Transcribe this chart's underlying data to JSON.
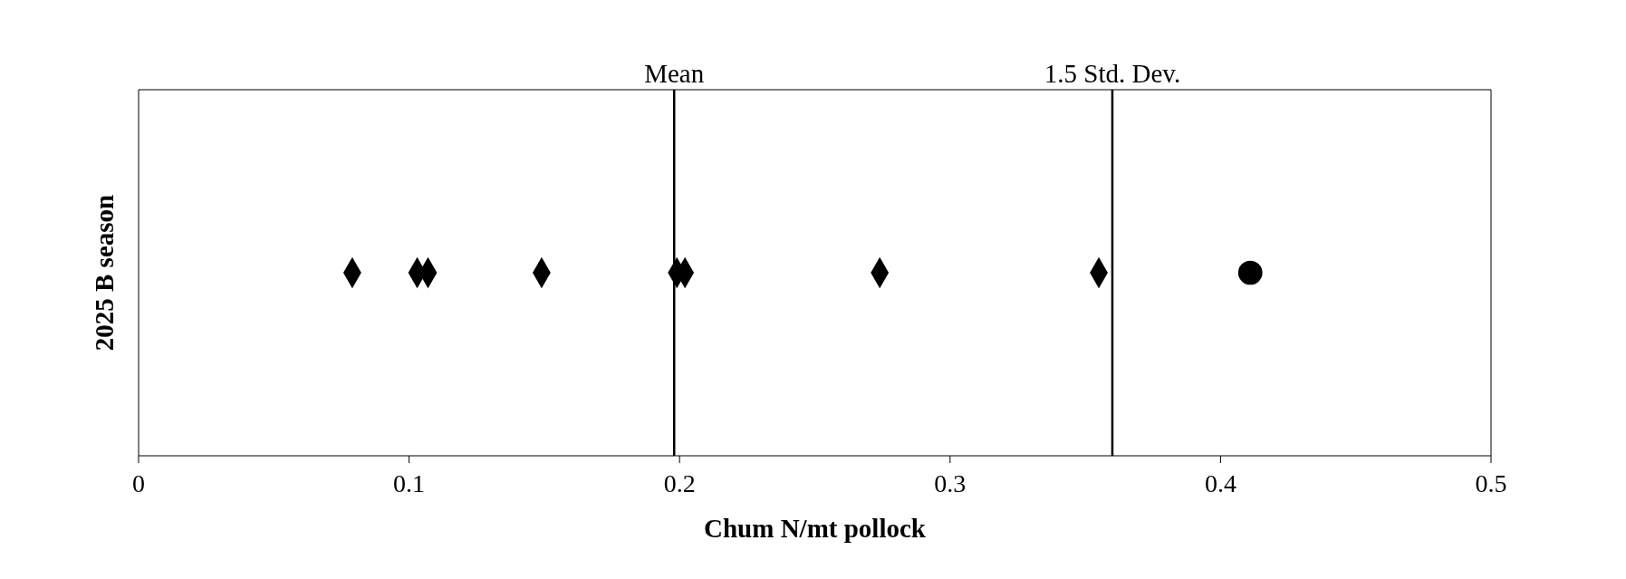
{
  "chart_data": {
    "type": "scatter",
    "orientation": "horizontal",
    "xlabel": "Chum  N/mt pollock",
    "categories": [
      "2025 B season"
    ],
    "xlim": [
      0,
      0.5
    ],
    "xticks": [
      0,
      0.1,
      0.2,
      0.3,
      0.4,
      0.5
    ],
    "grid": false,
    "legend": false,
    "series": [
      {
        "color": "#000000",
        "marker": "diamond",
        "values": [
          0.079
        ]
      },
      {
        "color": "#000000",
        "marker": "diamond",
        "values": [
          0.103
        ]
      },
      {
        "color": "#000000",
        "marker": "diamond",
        "values": [
          0.107
        ]
      },
      {
        "color": "#000000",
        "marker": "diamond",
        "values": [
          0.149
        ]
      },
      {
        "color": "#000000",
        "marker": "diamond",
        "values": [
          0.199
        ]
      },
      {
        "color": "#000000",
        "marker": "diamond",
        "values": [
          0.202
        ]
      },
      {
        "color": "#000000",
        "marker": "diamond",
        "values": [
          0.274
        ]
      },
      {
        "color": "#000000",
        "marker": "diamond",
        "values": [
          0.355
        ]
      },
      {
        "color": "#000000",
        "marker": "circle",
        "values": [
          0.411
        ]
      }
    ],
    "ref_lines": [
      {
        "axis": "x",
        "value": 0.198,
        "label": "Mean",
        "color": "#000000"
      },
      {
        "axis": "x",
        "value": 0.36,
        "label": "1.5 Std. Dev.",
        "color": "#000000"
      }
    ]
  }
}
